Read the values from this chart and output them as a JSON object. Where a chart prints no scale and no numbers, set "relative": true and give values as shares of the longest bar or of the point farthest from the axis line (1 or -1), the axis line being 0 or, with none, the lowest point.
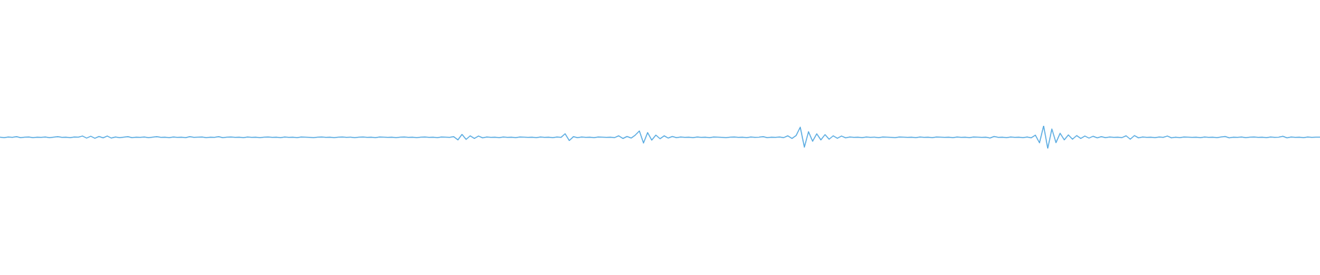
{
  "chart_data": {
    "type": "line",
    "relative": true,
    "tick_labels": false,
    "color": "#5dade2",
    "categories": [
      null,
      null,
      null,
      null,
      null,
      null,
      null,
      null,
      null,
      null,
      null,
      null,
      null,
      null,
      null,
      null,
      null,
      null,
      null,
      null,
      null,
      null,
      null,
      null,
      null,
      null,
      null,
      null,
      null,
      null,
      null,
      null,
      null,
      null,
      null,
      null,
      null,
      null,
      null,
      null,
      null,
      null,
      null,
      null,
      null,
      null,
      null,
      null,
      null,
      null,
      null,
      null,
      null,
      null,
      null,
      null,
      null,
      null,
      null,
      null,
      null,
      null,
      null,
      null,
      null,
      null,
      null,
      null,
      null,
      null,
      null,
      null,
      null,
      null,
      null,
      null,
      null,
      null,
      null,
      null,
      null,
      null,
      null,
      null,
      null,
      null,
      null,
      null,
      null,
      null,
      null,
      null,
      null,
      null,
      null,
      null,
      null,
      null,
      null,
      null,
      null,
      null,
      null,
      null,
      null,
      null,
      null,
      null,
      null,
      null,
      null,
      null,
      null,
      null,
      null,
      null,
      null,
      null,
      null,
      null,
      null,
      null,
      null,
      null,
      null,
      null,
      null,
      null,
      null,
      null,
      null,
      null,
      null,
      null,
      null,
      null,
      null,
      null,
      null,
      null,
      null,
      null,
      null,
      null,
      null,
      null,
      null,
      null,
      null,
      null,
      null,
      null,
      null,
      null,
      null,
      null,
      null,
      null,
      null,
      null,
      null,
      null,
      null,
      null,
      null,
      null,
      null,
      null,
      null,
      null,
      null,
      null,
      null,
      null,
      null,
      null,
      null,
      null,
      null,
      null,
      null,
      null,
      null,
      null,
      null,
      null,
      null,
      null,
      null,
      null,
      null,
      null,
      null,
      null,
      null,
      null,
      null,
      null,
      null,
      null,
      null,
      null,
      null,
      null,
      null,
      null,
      null,
      null,
      null,
      null,
      null,
      null,
      null,
      null,
      null,
      null,
      null,
      null,
      null,
      null,
      null,
      null,
      null,
      null,
      null,
      null,
      null,
      null,
      null,
      null,
      null,
      null,
      null,
      null,
      null,
      null,
      null,
      null,
      null,
      null,
      null,
      null,
      null,
      null,
      null,
      null,
      null,
      null,
      null,
      null,
      null,
      null,
      null,
      null,
      null,
      null,
      null,
      null,
      null,
      null,
      null,
      null,
      null,
      null,
      null,
      null,
      null,
      null,
      null,
      null,
      null,
      null,
      null,
      null,
      null,
      null,
      null,
      null,
      null,
      null,
      null,
      null,
      null,
      null,
      null,
      null,
      null,
      null,
      null,
      null,
      null,
      null,
      null,
      null,
      null,
      null,
      null,
      null,
      null,
      null,
      null,
      null,
      null,
      null,
      null,
      null,
      null,
      null,
      null,
      null,
      null,
      null,
      null,
      null,
      null,
      null,
      null,
      null,
      null,
      null,
      null
    ],
    "values": [
      0.5,
      0.48,
      0.51,
      0.49,
      0.52,
      0.48,
      0.5,
      0.51,
      0.48,
      0.5,
      0.49,
      0.51,
      0.48,
      0.5,
      0.52,
      0.49,
      0.5,
      0.48,
      0.51,
      0.5,
      0.55,
      0.46,
      0.54,
      0.45,
      0.53,
      0.47,
      0.55,
      0.46,
      0.51,
      0.48,
      0.5,
      0.52,
      0.48,
      0.5,
      0.49,
      0.51,
      0.48,
      0.5,
      0.52,
      0.49,
      0.5,
      0.48,
      0.51,
      0.49,
      0.5,
      0.48,
      0.52,
      0.49,
      0.5,
      0.51,
      0.48,
      0.5,
      0.49,
      0.52,
      0.48,
      0.5,
      0.51,
      0.49,
      0.5,
      0.48,
      0.51,
      0.49,
      0.5,
      0.48,
      0.5,
      0.51,
      0.49,
      0.5,
      0.48,
      0.51,
      0.49,
      0.5,
      0.48,
      0.51,
      0.5,
      0.49,
      0.48,
      0.5,
      0.51,
      0.49,
      0.5,
      0.48,
      0.5,
      0.51,
      0.49,
      0.5,
      0.48,
      0.5,
      0.51,
      0.49,
      0.5,
      0.48,
      0.51,
      0.5,
      0.49,
      0.5,
      0.48,
      0.5,
      0.51,
      0.49,
      0.5,
      0.48,
      0.5,
      0.51,
      0.49,
      0.5,
      0.48,
      0.51,
      0.5,
      0.49,
      0.52,
      0.38,
      0.62,
      0.4,
      0.56,
      0.44,
      0.55,
      0.47,
      0.51,
      0.49,
      0.5,
      0.48,
      0.51,
      0.49,
      0.5,
      0.48,
      0.51,
      0.5,
      0.49,
      0.5,
      0.48,
      0.51,
      0.49,
      0.5,
      0.48,
      0.51,
      0.49,
      0.65,
      0.35,
      0.52,
      0.48,
      0.51,
      0.49,
      0.5,
      0.48,
      0.51,
      0.5,
      0.49,
      0.5,
      0.48,
      0.56,
      0.44,
      0.53,
      0.46,
      0.59,
      0.77,
      0.24,
      0.7,
      0.37,
      0.59,
      0.43,
      0.56,
      0.46,
      0.53,
      0.48,
      0.51,
      0.49,
      0.5,
      0.48,
      0.51,
      0.49,
      0.5,
      0.48,
      0.51,
      0.5,
      0.49,
      0.48,
      0.5,
      0.51,
      0.49,
      0.5,
      0.48,
      0.51,
      0.49,
      0.5,
      0.52,
      0.48,
      0.5,
      0.49,
      0.51,
      0.48,
      0.56,
      0.44,
      0.57,
      0.94,
      0.06,
      0.74,
      0.32,
      0.65,
      0.38,
      0.61,
      0.41,
      0.56,
      0.45,
      0.55,
      0.47,
      0.51,
      0.49,
      0.5,
      0.48,
      0.51,
      0.49,
      0.5,
      0.48,
      0.51,
      0.5,
      0.49,
      0.48,
      0.51,
      0.5,
      0.49,
      0.5,
      0.48,
      0.51,
      0.49,
      0.5,
      0.48,
      0.51,
      0.5,
      0.49,
      0.5,
      0.48,
      0.51,
      0.49,
      0.5,
      0.48,
      0.51,
      0.5,
      0.49,
      0.5,
      0.46,
      0.53,
      0.49,
      0.5,
      0.48,
      0.51,
      0.49,
      0.5,
      0.48,
      0.51,
      0.47,
      0.59,
      0.25,
      1,
      0,
      0.86,
      0.26,
      0.67,
      0.38,
      0.6,
      0.41,
      0.57,
      0.44,
      0.55,
      0.46,
      0.54,
      0.47,
      0.52,
      0.48,
      0.51,
      0.49,
      0.5,
      0.48,
      0.56,
      0.41,
      0.57,
      0.47,
      0.51,
      0.49,
      0.5,
      0.48,
      0.51,
      0.49,
      0.55,
      0.47,
      0.5,
      0.48,
      0.51,
      0.5,
      0.49,
      0.5,
      0.48,
      0.51,
      0.49,
      0.5,
      0.48,
      0.51,
      0.53,
      0.47,
      0.5,
      0.49,
      0.51,
      0.48,
      0.5,
      0.51,
      0.49,
      0.5,
      0.48,
      0.51,
      0.49,
      0.5,
      0.54,
      0.47,
      0.51,
      0.49,
      0.5,
      0.48,
      0.51,
      0.49,
      0.5,
      0.5
    ]
  }
}
